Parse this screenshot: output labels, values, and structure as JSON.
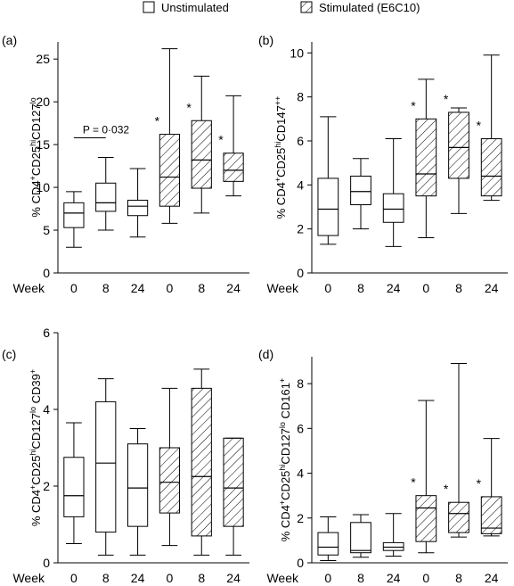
{
  "legend": {
    "unstim_label": "Unstimulated",
    "stim_label": "Stimulated (E6C10)",
    "placement": "top-center"
  },
  "x_axis_title": "Week",
  "chart_data": [
    {
      "type": "box",
      "panel": "(a)",
      "ylabel_parts": [
        "% CD4",
        "+",
        "CD25",
        "hi",
        "CD127",
        "lo"
      ],
      "ylim": [
        0,
        27
      ],
      "yticks": [
        0,
        5,
        10,
        15,
        20,
        25
      ],
      "categories": [
        "0",
        "8",
        "24",
        "0",
        "8",
        "24"
      ],
      "groups": [
        "unstimulated",
        "unstimulated",
        "unstimulated",
        "stimulated",
        "stimulated",
        "stimulated"
      ],
      "boxes": [
        {
          "min": 3.0,
          "q1": 5.3,
          "median": 7.0,
          "q3": 8.2,
          "max": 9.5
        },
        {
          "min": 5.0,
          "q1": 7.2,
          "median": 8.2,
          "q3": 10.5,
          "max": 13.5
        },
        {
          "min": 4.2,
          "q1": 6.7,
          "median": 7.8,
          "q3": 8.5,
          "max": 12.2
        },
        {
          "min": 5.8,
          "q1": 7.8,
          "median": 11.2,
          "q3": 16.2,
          "max": 26.2
        },
        {
          "min": 7.0,
          "q1": 9.9,
          "median": 13.2,
          "q3": 17.8,
          "max": 23.0
        },
        {
          "min": 9.0,
          "q1": 10.7,
          "median": 12.0,
          "q3": 14.0,
          "max": 20.7
        }
      ],
      "asterisks": [
        false,
        false,
        false,
        true,
        true,
        true
      ],
      "pvalue": {
        "text": "P = 0·032",
        "between": [
          0,
          1
        ]
      }
    },
    {
      "type": "box",
      "panel": "(b)",
      "ylabel_parts": [
        "% CD4",
        "+",
        "CD25",
        "hi",
        "CD147",
        "++"
      ],
      "ylim": [
        0,
        10.5
      ],
      "yticks": [
        0,
        2,
        4,
        6,
        8,
        10
      ],
      "categories": [
        "0",
        "8",
        "24",
        "0",
        "8",
        "24"
      ],
      "groups": [
        "unstimulated",
        "unstimulated",
        "unstimulated",
        "stimulated",
        "stimulated",
        "stimulated"
      ],
      "boxes": [
        {
          "min": 1.3,
          "q1": 1.7,
          "median": 2.9,
          "q3": 4.3,
          "max": 7.1
        },
        {
          "min": 2.0,
          "q1": 3.1,
          "median": 3.7,
          "q3": 4.4,
          "max": 5.2
        },
        {
          "min": 1.2,
          "q1": 2.3,
          "median": 2.9,
          "q3": 3.6,
          "max": 6.1
        },
        {
          "min": 1.6,
          "q1": 3.5,
          "median": 4.5,
          "q3": 7.0,
          "max": 8.8
        },
        {
          "min": 2.7,
          "q1": 4.3,
          "median": 5.7,
          "q3": 7.3,
          "max": 7.5
        },
        {
          "min": 3.3,
          "q1": 3.5,
          "median": 4.4,
          "q3": 6.1,
          "max": 9.9
        }
      ],
      "asterisks": [
        false,
        false,
        false,
        true,
        true,
        true
      ]
    },
    {
      "type": "box",
      "panel": "(c)",
      "ylabel_parts": [
        "% CD4",
        "+",
        "CD25",
        "hi",
        "CD127",
        "lo",
        " CD39",
        "+"
      ],
      "ylim": [
        0,
        6
      ],
      "yticks": [
        0,
        2,
        4,
        6
      ],
      "categories": [
        "0",
        "8",
        "24",
        "0",
        "8",
        "24"
      ],
      "groups": [
        "unstimulated",
        "unstimulated",
        "unstimulated",
        "stimulated",
        "stimulated",
        "stimulated"
      ],
      "boxes": [
        {
          "min": 0.5,
          "q1": 1.2,
          "median": 1.75,
          "q3": 2.75,
          "max": 3.65
        },
        {
          "min": 0.2,
          "q1": 0.8,
          "median": 2.6,
          "q3": 4.2,
          "max": 4.8
        },
        {
          "min": 0.2,
          "q1": 0.95,
          "median": 1.95,
          "q3": 3.1,
          "max": 3.5
        },
        {
          "min": 0.45,
          "q1": 1.3,
          "median": 2.1,
          "q3": 3.0,
          "max": 4.55
        },
        {
          "min": 0.2,
          "q1": 0.7,
          "median": 2.25,
          "q3": 4.55,
          "max": 5.05
        },
        {
          "min": 0.2,
          "q1": 0.95,
          "median": 1.95,
          "q3": 3.25,
          "max": 3.25
        }
      ],
      "asterisks": [
        false,
        false,
        false,
        false,
        false,
        false
      ]
    },
    {
      "type": "box",
      "panel": "(d)",
      "ylabel_parts": [
        "% CD4",
        "+",
        "CD25",
        "hi",
        "CD127",
        "lo",
        " CD161",
        "+"
      ],
      "ylim": [
        0,
        9.2
      ],
      "yticks": [
        0,
        2,
        4,
        6,
        8
      ],
      "categories": [
        "0",
        "8",
        "24",
        "0",
        "8",
        "24"
      ],
      "groups": [
        "unstimulated",
        "unstimulated",
        "unstimulated",
        "stimulated",
        "stimulated",
        "stimulated"
      ],
      "boxes": [
        {
          "min": 0.1,
          "q1": 0.35,
          "median": 0.7,
          "q3": 1.35,
          "max": 2.05
        },
        {
          "min": 0.25,
          "q1": 0.45,
          "median": 0.55,
          "q3": 1.8,
          "max": 2.15
        },
        {
          "min": 0.3,
          "q1": 0.55,
          "median": 0.7,
          "q3": 0.9,
          "max": 2.2
        },
        {
          "min": 0.45,
          "q1": 0.95,
          "median": 2.45,
          "q3": 3.0,
          "max": 7.25
        },
        {
          "min": 1.15,
          "q1": 1.35,
          "median": 2.2,
          "q3": 2.7,
          "max": 8.9
        },
        {
          "min": 1.2,
          "q1": 1.3,
          "median": 1.55,
          "q3": 2.95,
          "max": 5.55
        }
      ],
      "asterisks": [
        false,
        false,
        false,
        true,
        true,
        true
      ]
    }
  ]
}
